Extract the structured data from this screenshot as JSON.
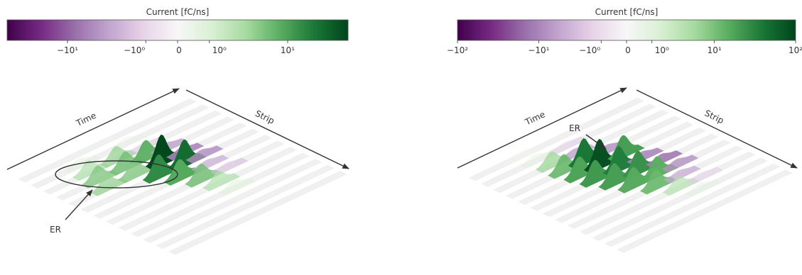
{
  "chart_data": [
    {
      "type": "heatmap",
      "title": "",
      "colorbar": {
        "label": "Current [fC/ns]",
        "scale": "symlog",
        "range": [
          -40,
          40
        ],
        "ticks": [
          {
            "value": -10,
            "label": "−10¹"
          },
          {
            "value": -1,
            "label": "−10⁰"
          },
          {
            "value": 0,
            "label": "0"
          },
          {
            "value": 1,
            "label": "10⁰"
          },
          {
            "value": 10,
            "label": "10¹"
          }
        ],
        "colors": [
          "#40004b",
          "#762a83",
          "#9970ab",
          "#c2a5cf",
          "#e7d4e8",
          "#f7f7f7",
          "#d9f0d3",
          "#a6dba0",
          "#5aae61",
          "#1b7837",
          "#00441b"
        ]
      },
      "axes": {
        "time_label": "Time",
        "strip_label": "Strip"
      },
      "annotation": {
        "text": "ER"
      },
      "strips": [
        {
          "peaks": [
            {
              "t": 0.3,
              "v": 0.2
            },
            {
              "t": 0.62,
              "v": -0.3
            }
          ]
        },
        {
          "peaks": [
            {
              "t": 0.28,
              "v": 0.8
            },
            {
              "t": 0.55,
              "v": 0.6
            }
          ]
        },
        {
          "peaks": [
            {
              "t": 0.26,
              "v": 3
            },
            {
              "t": 0.42,
              "v": 4
            },
            {
              "t": 0.58,
              "v": -1.5
            }
          ]
        },
        {
          "peaks": [
            {
              "t": 0.24,
              "v": 5
            },
            {
              "t": 0.4,
              "v": 6
            },
            {
              "t": 0.52,
              "v": 8
            },
            {
              "t": 0.64,
              "v": -4
            }
          ]
        },
        {
          "peaks": [
            {
              "t": 0.22,
              "v": 4
            },
            {
              "t": 0.38,
              "v": 5
            },
            {
              "t": 0.54,
              "v": 38
            },
            {
              "t": 0.66,
              "v": -6
            }
          ]
        },
        {
          "peaks": [
            {
              "t": 0.45,
              "v": 14
            },
            {
              "t": 0.6,
              "v": 22
            },
            {
              "t": 0.7,
              "v": -5
            }
          ]
        },
        {
          "peaks": [
            {
              "t": 0.5,
              "v": 9
            },
            {
              "t": 0.66,
              "v": -3
            }
          ]
        },
        {
          "peaks": [
            {
              "t": 0.55,
              "v": 6
            },
            {
              "t": 0.7,
              "v": -2
            }
          ]
        },
        {
          "peaks": [
            {
              "t": 0.58,
              "v": 3
            }
          ]
        },
        {
          "peaks": [
            {
              "t": 0.6,
              "v": 1
            }
          ]
        },
        {
          "peaks": []
        },
        {
          "peaks": []
        },
        {
          "peaks": []
        }
      ]
    },
    {
      "type": "heatmap",
      "title": "",
      "colorbar": {
        "label": "Current [fC/ns]",
        "scale": "symlog",
        "range": [
          -100,
          100
        ],
        "ticks": [
          {
            "value": -100,
            "label": "−10²"
          },
          {
            "value": -10,
            "label": "−10¹"
          },
          {
            "value": -1,
            "label": "−10⁰"
          },
          {
            "value": 0,
            "label": "0"
          },
          {
            "value": 1,
            "label": "10⁰"
          },
          {
            "value": 10,
            "label": "10¹"
          },
          {
            "value": 100,
            "label": "10²"
          }
        ],
        "colors": [
          "#40004b",
          "#762a83",
          "#9970ab",
          "#c2a5cf",
          "#e7d4e8",
          "#f7f7f7",
          "#d9f0d3",
          "#a6dba0",
          "#5aae61",
          "#1b7837",
          "#00441b"
        ]
      },
      "axes": {
        "time_label": "Time",
        "strip_label": "Strip"
      },
      "annotation": {
        "text": "ER"
      },
      "strips": [
        {
          "peaks": [
            {
              "t": 0.3,
              "v": 0.3
            }
          ]
        },
        {
          "peaks": [
            {
              "t": 0.32,
              "v": 1
            },
            {
              "t": 0.5,
              "v": -2
            }
          ]
        },
        {
          "peaks": [
            {
              "t": 0.34,
              "v": 6
            },
            {
              "t": 0.48,
              "v": -6
            }
          ]
        },
        {
          "peaks": [
            {
              "t": 0.34,
              "v": 12
            },
            {
              "t": 0.46,
              "v": 40
            },
            {
              "t": 0.6,
              "v": -8
            }
          ]
        },
        {
          "peaks": [
            {
              "t": 0.36,
              "v": 18
            },
            {
              "t": 0.48,
              "v": 80
            },
            {
              "t": 0.62,
              "v": 20
            }
          ]
        },
        {
          "peaks": [
            {
              "t": 0.38,
              "v": 22
            },
            {
              "t": 0.52,
              "v": 35
            },
            {
              "t": 0.66,
              "v": -10
            }
          ]
        },
        {
          "peaks": [
            {
              "t": 0.42,
              "v": 20
            },
            {
              "t": 0.56,
              "v": 25
            },
            {
              "t": 0.7,
              "v": -12
            }
          ]
        },
        {
          "peaks": [
            {
              "t": 0.46,
              "v": 16
            },
            {
              "t": 0.6,
              "v": 15
            },
            {
              "t": 0.72,
              "v": -8
            }
          ]
        },
        {
          "peaks": [
            {
              "t": 0.52,
              "v": 12
            },
            {
              "t": 0.66,
              "v": -5
            }
          ]
        },
        {
          "peaks": [
            {
              "t": 0.58,
              "v": 4
            },
            {
              "t": 0.72,
              "v": -2
            }
          ]
        },
        {
          "peaks": [
            {
              "t": 0.64,
              "v": 1
            }
          ]
        },
        {
          "peaks": []
        },
        {
          "peaks": []
        }
      ]
    }
  ]
}
